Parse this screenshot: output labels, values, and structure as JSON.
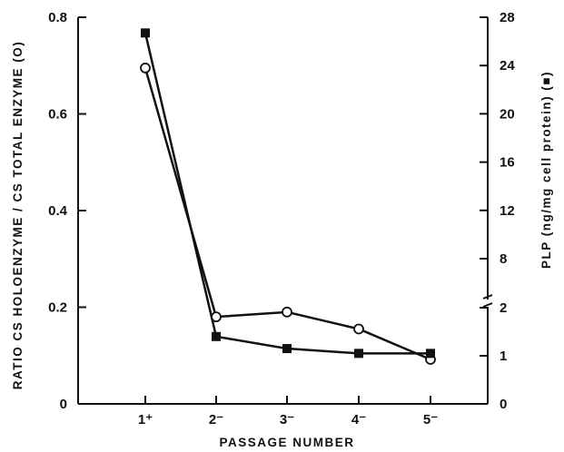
{
  "chart_data": {
    "type": "line",
    "xlabel": "PASSAGE NUMBER",
    "ylabel_left": "RATIO CS HOLOENZYME / CS TOTAL ENZYME (O)",
    "ylabel_right": "PLP (ng/mg cell protein) (■)",
    "categories": [
      "1⁺",
      "2⁻",
      "3⁻",
      "4⁻",
      "5⁻"
    ],
    "left_axis": {
      "ylim": [
        0,
        0.8
      ],
      "ticks": [
        "0",
        "0.2",
        "0.4",
        "0.6",
        "0.8"
      ]
    },
    "right_axis": {
      "broken": true,
      "lower_range": [
        0,
        2
      ],
      "upper_range": [
        2,
        28
      ],
      "ticks": [
        "0",
        "1",
        "2",
        "8",
        "12",
        "16",
        "20",
        "24",
        "28"
      ]
    },
    "grid": false,
    "series": [
      {
        "axis": "left",
        "marker": "open-circle",
        "values": [
          0.695,
          0.18,
          0.19,
          0.155,
          0.092
        ]
      },
      {
        "axis": "right",
        "marker": "filled-square",
        "values": [
          26.7,
          1.4,
          1.15,
          1.05,
          1.05
        ]
      }
    ]
  }
}
